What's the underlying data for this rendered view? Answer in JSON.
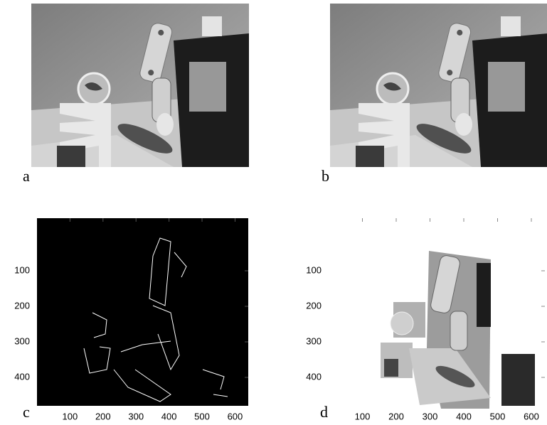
{
  "panels": [
    {
      "label": "a"
    },
    {
      "label": "b"
    },
    {
      "label": "c",
      "xlim": [
        0,
        640
      ],
      "ylim": [
        0,
        480
      ],
      "xticks": [
        100,
        200,
        300,
        400,
        500,
        600
      ],
      "yticks": [
        100,
        200,
        300,
        400
      ]
    },
    {
      "label": "d",
      "xlim": [
        0,
        640
      ],
      "ylim": [
        0,
        480
      ],
      "xticks": [
        100,
        200,
        300,
        400,
        500,
        600
      ],
      "yticks": [
        100,
        200,
        300,
        400
      ]
    }
  ]
}
